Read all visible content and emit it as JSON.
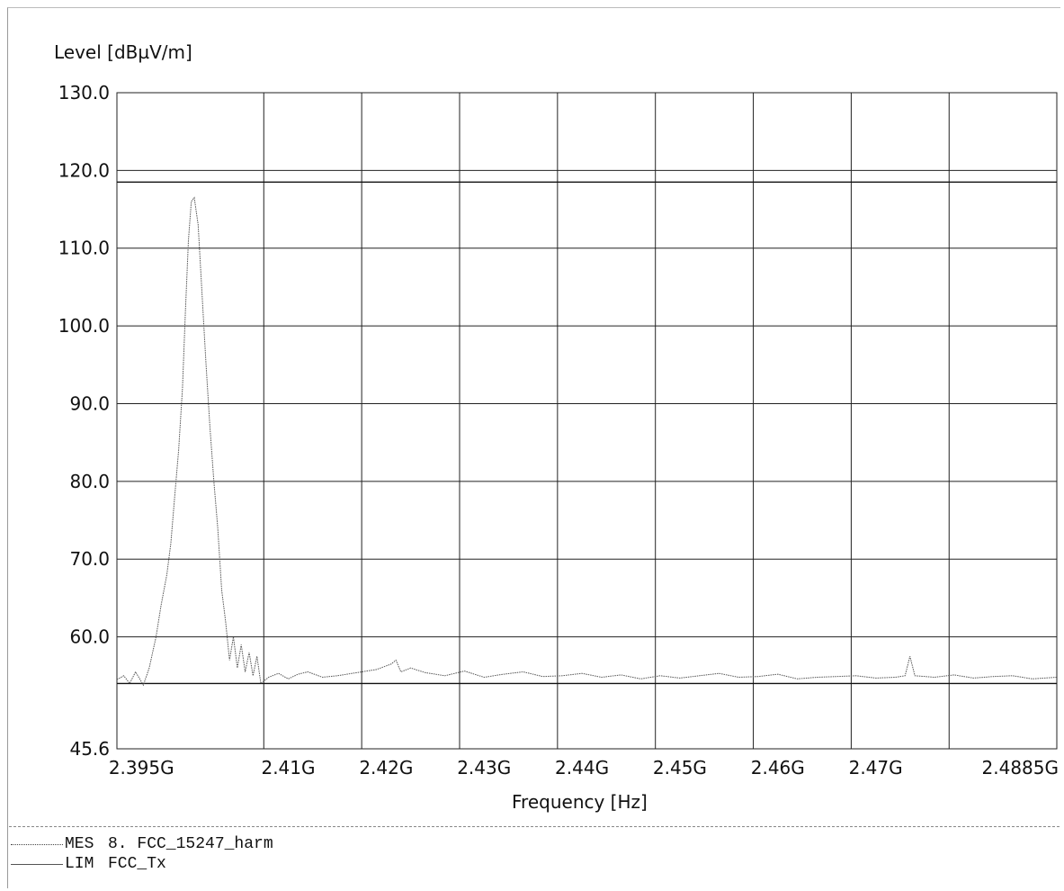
{
  "chart_data": {
    "type": "line",
    "ylabel": "Level [dBµV/m]",
    "xlabel": "Frequency [Hz]",
    "ylim": [
      45.6,
      130.0
    ],
    "xlim": [
      2.3925,
      2.4885
    ],
    "y_ticks": [
      {
        "value": 130.0,
        "label": "130.0"
      },
      {
        "value": 120.0,
        "label": "120.0"
      },
      {
        "value": 110.0,
        "label": "110.0"
      },
      {
        "value": 100.0,
        "label": "100.0"
      },
      {
        "value": 90.0,
        "label": "90.0"
      },
      {
        "value": 80.0,
        "label": "80.0"
      },
      {
        "value": 70.0,
        "label": "70.0"
      },
      {
        "value": 60.0,
        "label": "60.0"
      },
      {
        "value": 45.6,
        "label": "45.6"
      }
    ],
    "x_ticks": [
      {
        "value": 2.395,
        "label": "2.395G"
      },
      {
        "value": 2.41,
        "label": "2.41G"
      },
      {
        "value": 2.42,
        "label": "2.42G"
      },
      {
        "value": 2.43,
        "label": "2.43G"
      },
      {
        "value": 2.44,
        "label": "2.44G"
      },
      {
        "value": 2.45,
        "label": "2.45G"
      },
      {
        "value": 2.46,
        "label": "2.46G"
      },
      {
        "value": 2.47,
        "label": "2.47G"
      },
      {
        "value": 2.4885,
        "label": "2.4885G"
      }
    ],
    "x_gridlines": [
      2.3925,
      2.4075,
      2.4175,
      2.4275,
      2.4375,
      2.4475,
      2.4575,
      2.4675,
      2.4775,
      2.4885
    ],
    "y_gridlines": [
      130,
      120,
      110,
      100,
      90,
      80,
      70,
      60,
      45.6
    ],
    "grid": true,
    "limit_lines": [
      {
        "label": "LIM FCC_Tx",
        "y": 118.5,
        "x_range": [
          2.3925,
          2.4885
        ],
        "style": "solid"
      },
      {
        "label": "LIM FCC_Tx",
        "y": 54.0,
        "x_range": [
          2.3925,
          2.4885
        ],
        "style": "solid"
      }
    ],
    "series": [
      {
        "style": "dotted",
        "x": [
          2.3925,
          2.3932,
          2.3938,
          2.3944,
          2.3952,
          2.3958,
          2.3965,
          2.397,
          2.3976,
          2.398,
          2.3984,
          2.3988,
          2.3992,
          2.3995,
          2.3998,
          2.4001,
          2.4004,
          2.4008,
          2.4012,
          2.4016,
          2.402,
          2.4024,
          2.4028,
          2.4032,
          2.4036,
          2.404,
          2.4044,
          2.4048,
          2.4052,
          2.4056,
          2.406,
          2.4064,
          2.4068,
          2.4072,
          2.408,
          2.409,
          2.41,
          2.411,
          2.412,
          2.4135,
          2.415,
          2.417,
          2.419,
          2.4205,
          2.421,
          2.4215,
          2.4225,
          2.424,
          2.426,
          2.428,
          2.43,
          2.432,
          2.434,
          2.436,
          2.438,
          2.44,
          2.442,
          2.444,
          2.446,
          2.448,
          2.45,
          2.452,
          2.454,
          2.456,
          2.458,
          2.46,
          2.462,
          2.464,
          2.466,
          2.468,
          2.47,
          2.472,
          2.473,
          2.4735,
          2.474,
          2.476,
          2.478,
          2.48,
          2.482,
          2.484,
          2.486,
          2.4885
        ],
        "y": [
          54.5,
          55.0,
          54.0,
          55.5,
          53.8,
          56.0,
          60.0,
          64.0,
          68.0,
          72.0,
          78.0,
          84.0,
          92.0,
          102.0,
          111.0,
          116.0,
          116.5,
          113.0,
          104.0,
          95.0,
          87.0,
          80.0,
          74.0,
          66.0,
          62.0,
          57.0,
          60.0,
          56.0,
          59.0,
          55.5,
          58.0,
          55.0,
          57.5,
          54.0,
          54.8,
          55.3,
          54.6,
          55.2,
          55.5,
          54.8,
          55.0,
          55.4,
          55.8,
          56.5,
          57.0,
          55.5,
          56.0,
          55.4,
          55.0,
          55.6,
          54.8,
          55.2,
          55.5,
          54.9,
          55.0,
          55.3,
          54.8,
          55.1,
          54.6,
          55.0,
          54.7,
          55.0,
          55.3,
          54.8,
          54.9,
          55.2,
          54.6,
          54.8,
          54.9,
          55.0,
          54.7,
          54.8,
          55.0,
          57.5,
          55.0,
          54.8,
          55.1,
          54.7,
          54.9,
          55.0,
          54.6,
          54.8
        ]
      }
    ]
  },
  "legend": [
    {
      "key": "MES",
      "text": "8. FCC_15247_harm",
      "style": "dotted"
    },
    {
      "key": "LIM",
      "text": "FCC_Tx",
      "style": "solid"
    }
  ]
}
